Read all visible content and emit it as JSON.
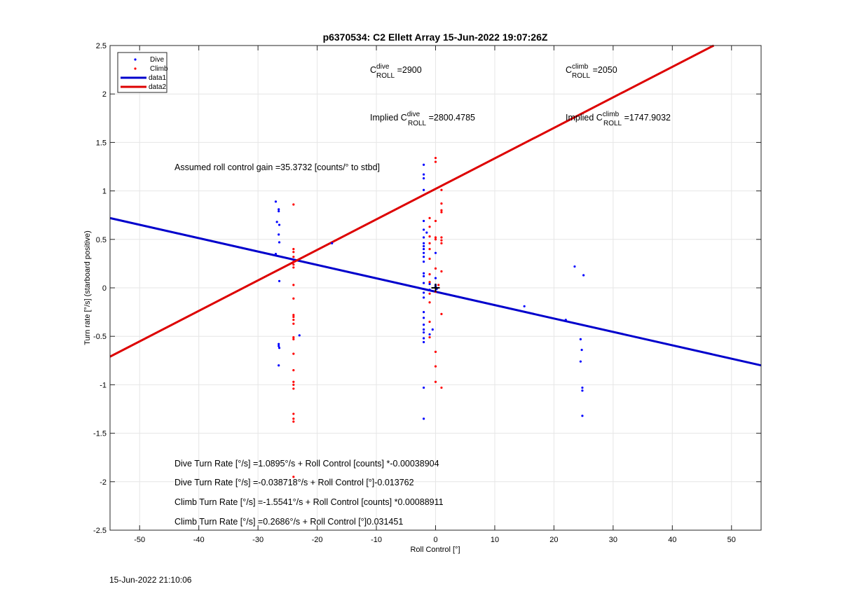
{
  "chart_data": {
    "type": "scatter",
    "title": "p6370534: C2 Ellett Array 15-Jun-2022 19:07:26Z",
    "xlabel": "Roll Control [°]",
    "ylabel": "Turn rate [°/s] (starboard positive)",
    "xlim": [
      -55,
      55
    ],
    "ylim": [
      -2.5,
      2.5
    ],
    "x_ticks": [
      -50,
      -40,
      -30,
      -20,
      -10,
      0,
      10,
      20,
      30,
      40,
      50
    ],
    "x_tick_labels": [
      "-50",
      "-40",
      "-30",
      "-20",
      "-10",
      "0",
      "10",
      "20",
      "30",
      "40",
      "50"
    ],
    "y_ticks": [
      -2.5,
      -2,
      -1.5,
      -1,
      -0.5,
      0,
      0.5,
      1,
      1.5,
      2,
      2.5
    ],
    "y_tick_labels": [
      "-2.5",
      "-2",
      "-1.5",
      "-1",
      "-0.5",
      "0",
      "0.5",
      "1",
      "1.5",
      "2",
      "2.5"
    ],
    "grid": true,
    "legend_position": "top-left",
    "legend": [
      "Dive",
      "Climb",
      "data1",
      "data2"
    ],
    "series": [
      {
        "name": "Dive",
        "kind": "points",
        "color": "#0000ff",
        "points": [
          [
            -27,
            0.89
          ],
          [
            -26.5,
            0.81
          ],
          [
            -26.5,
            0.79
          ],
          [
            -26.8,
            0.68
          ],
          [
            -26.4,
            0.65
          ],
          [
            -26.5,
            0.55
          ],
          [
            -26.4,
            0.47
          ],
          [
            -27,
            0.35
          ],
          [
            -26.4,
            0.07
          ],
          [
            -26.5,
            -0.58
          ],
          [
            -26.5,
            -0.6
          ],
          [
            -26.4,
            -0.62
          ],
          [
            -26.5,
            -0.8
          ],
          [
            -23,
            -0.49
          ],
          [
            -17.5,
            0.46
          ],
          [
            -2,
            1.27
          ],
          [
            -2,
            1.17
          ],
          [
            -2,
            1.13
          ],
          [
            -2,
            1.01
          ],
          [
            -2,
            0.69
          ],
          [
            -2,
            0.6
          ],
          [
            -2,
            0.52
          ],
          [
            -2,
            0.46
          ],
          [
            -2,
            0.43
          ],
          [
            -2,
            0.4
          ],
          [
            -2,
            0.36
          ],
          [
            -2,
            0.32
          ],
          [
            -2,
            0.27
          ],
          [
            -2,
            0.15
          ],
          [
            -2,
            0.12
          ],
          [
            -2,
            0.05
          ],
          [
            -2,
            -0.05
          ],
          [
            -2,
            -0.1
          ],
          [
            -2,
            -0.25
          ],
          [
            -2,
            -0.31
          ],
          [
            -2,
            -0.38
          ],
          [
            -2,
            -0.43
          ],
          [
            -2,
            -0.46
          ],
          [
            -2,
            -0.52
          ],
          [
            -2,
            -0.56
          ],
          [
            -2,
            -1.03
          ],
          [
            -2,
            -1.35
          ],
          [
            -1.5,
            0.57
          ],
          [
            -1,
            0.04
          ],
          [
            -1,
            -0.02
          ],
          [
            -1,
            -0.48
          ],
          [
            -0.5,
            -0.43
          ],
          [
            0,
            0.36
          ],
          [
            0,
            0.1
          ],
          [
            0,
            0.03
          ],
          [
            0,
            0.02
          ],
          [
            0,
            0.01
          ],
          [
            0.2,
            -0.01
          ],
          [
            15,
            -0.19
          ],
          [
            22,
            -0.33
          ],
          [
            23.5,
            0.22
          ],
          [
            24.5,
            -0.53
          ],
          [
            24.7,
            -0.64
          ],
          [
            24.5,
            -0.76
          ],
          [
            24.8,
            -1.03
          ],
          [
            24.8,
            -1.06
          ],
          [
            24.8,
            -1.32
          ],
          [
            25,
            0.13
          ]
        ]
      },
      {
        "name": "Climb",
        "kind": "points",
        "color": "#ff0000",
        "points": [
          [
            -24,
            0.86
          ],
          [
            -24,
            0.4
          ],
          [
            -24,
            0.37
          ],
          [
            -24,
            0.32
          ],
          [
            -24,
            0.27
          ],
          [
            -24,
            0.24
          ],
          [
            -24,
            0.21
          ],
          [
            -24,
            0.03
          ],
          [
            -24,
            -0.11
          ],
          [
            -24,
            -0.28
          ],
          [
            -24,
            -0.3
          ],
          [
            -24,
            -0.33
          ],
          [
            -24,
            -0.37
          ],
          [
            -24,
            -0.51
          ],
          [
            -24,
            -0.53
          ],
          [
            -24,
            -0.68
          ],
          [
            -24,
            -0.85
          ],
          [
            -24,
            -0.97
          ],
          [
            -24,
            -1.0
          ],
          [
            -24,
            -1.04
          ],
          [
            -24,
            -1.3
          ],
          [
            -24,
            -1.35
          ],
          [
            -24,
            -1.38
          ],
          [
            -24,
            -1.95
          ],
          [
            -1,
            0.72
          ],
          [
            -1,
            0.63
          ],
          [
            -1,
            0.53
          ],
          [
            -1,
            0.46
          ],
          [
            -1,
            0.4
          ],
          [
            -1,
            0.3
          ],
          [
            -1,
            0.14
          ],
          [
            -1,
            0.06
          ],
          [
            -1,
            -0.06
          ],
          [
            -1,
            -0.15
          ],
          [
            -1,
            -0.35
          ],
          [
            -1,
            -0.51
          ],
          [
            0,
            1.34
          ],
          [
            0,
            1.3
          ],
          [
            0,
            0.69
          ],
          [
            0,
            0.52
          ],
          [
            0,
            0.5
          ],
          [
            0,
            0.2
          ],
          [
            0,
            -0.04
          ],
          [
            0,
            -0.66
          ],
          [
            0,
            -0.81
          ],
          [
            0,
            -0.97
          ],
          [
            1,
            1.01
          ],
          [
            1,
            0.87
          ],
          [
            1,
            0.8
          ],
          [
            1,
            0.78
          ],
          [
            1,
            0.52
          ],
          [
            1,
            0.49
          ],
          [
            1,
            0.46
          ],
          [
            1,
            0.17
          ],
          [
            1,
            -0.27
          ],
          [
            1,
            -1.03
          ],
          [
            0.5,
            0.03
          ]
        ]
      },
      {
        "name": "data1",
        "kind": "line",
        "color": "#0000cc",
        "x": [
          -55,
          55
        ],
        "y": [
          0.72,
          -0.8
        ]
      },
      {
        "name": "data2",
        "kind": "line",
        "color": "#dd0000",
        "x": [
          -55,
          47
        ],
        "y": [
          -0.71,
          2.5
        ]
      }
    ],
    "marker": {
      "x": 0,
      "y": 0,
      "symbol": "+"
    },
    "annotations": {
      "c_dive": {
        "main": "C",
        "sup": "dive",
        "sub": "ROLL",
        "value": " =2900"
      },
      "c_climb": {
        "main": "C",
        "sup": "climb",
        "sub": "ROLL",
        "value": " =2050"
      },
      "implied_dive": {
        "prefix": "Implied C",
        "sup": "dive",
        "sub": "ROLL",
        "value": " =2800.4785"
      },
      "implied_climb": {
        "prefix": "Implied C",
        "sup": "climb",
        "sub": "ROLL",
        "value": " =1747.9032"
      },
      "gain": "Assumed roll control gain =35.3732 [counts/° to stbd]",
      "dive_counts": "Dive Turn Rate [°/s] =1.0895°/s + Roll Control [counts] *-0.00038904",
      "dive_deg": "Dive Turn Rate [°/s] =-0.038718°/s + Roll Control [°]-0.013762",
      "climb_counts": "Climb Turn Rate [°/s] =-1.5541°/s + Roll Control [counts] *0.00088911",
      "climb_deg": "Climb Turn Rate [°/s] =0.2686°/s + Roll Control [°]0.031451"
    }
  },
  "timestamp": "15-Jun-2022 21:10:06"
}
